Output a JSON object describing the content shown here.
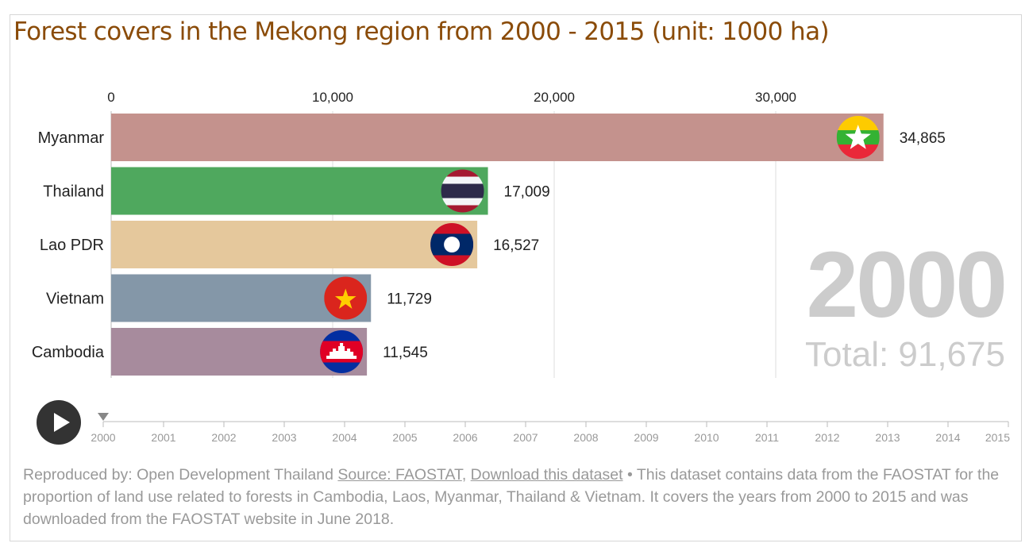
{
  "title": "Forest covers in the Mekong region from 2000 - 2015 (unit: 1000 ha)",
  "chart_data": {
    "type": "bar",
    "orientation": "horizontal",
    "title": "Forest covers in the Mekong region from 2000 - 2015 (unit: 1000 ha)",
    "year": "2000",
    "categories": [
      "Myanmar",
      "Thailand",
      "Lao PDR",
      "Vietnam",
      "Cambodia"
    ],
    "values": [
      34865,
      17009,
      16527,
      11729,
      11545
    ],
    "value_labels": [
      "34,865",
      "17,009",
      "16,527",
      "11,729",
      "11,545"
    ],
    "colors": [
      "#c4928d",
      "#4fa85e",
      "#e5c89c",
      "#8497a8",
      "#a78b9d"
    ],
    "flags": [
      "myanmar-flag-icon",
      "thailand-flag-icon",
      "laos-flag-icon",
      "vietnam-flag-icon",
      "cambodia-flag-icon"
    ],
    "xlim": [
      0,
      40000
    ],
    "xticks": [
      0,
      10000,
      20000,
      30000
    ],
    "xtick_labels": [
      "0",
      "10,000",
      "20,000",
      "30,000"
    ],
    "grid": true,
    "axis_position": "top"
  },
  "big_year": "2000",
  "total_label": "Total: 91,675",
  "timeline": {
    "years": [
      "2000",
      "2001",
      "2002",
      "2003",
      "2004",
      "2005",
      "2006",
      "2007",
      "2008",
      "2009",
      "2010",
      "2011",
      "2012",
      "2013",
      "2014",
      "2015"
    ],
    "current": "2000"
  },
  "footer": {
    "prefix": "Reproduced by: Open Development Thailand ",
    "source_link": "Source: FAOSTAT",
    "comma": ", ",
    "download_link": "Download this dataset",
    "description": " • This dataset contains data from the FAOSTAT for the proportion of land use related to forests in Cambodia, Laos, Myanmar, Thailand & Vietnam. It covers the years from 2000 to 2015 and was downloaded from the FAOSTAT website in June 2018."
  }
}
